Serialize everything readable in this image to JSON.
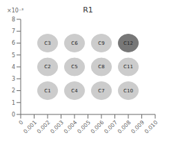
{
  "chart_data": {
    "type": "scatter",
    "title": "R1",
    "x": [
      0.002,
      0.002,
      0.002,
      0.004,
      0.004,
      0.004,
      0.006,
      0.006,
      0.006,
      0.008,
      0.008,
      0.008
    ],
    "values": [
      0.002,
      0.004,
      0.006,
      0.002,
      0.004,
      0.006,
      0.002,
      0.004,
      0.006,
      0.002,
      0.004,
      0.006
    ],
    "labels": [
      "C1",
      "C2",
      "C3",
      "C4",
      "C5",
      "C6",
      "C7",
      "C8",
      "C9",
      "C10",
      "C11",
      "C12"
    ],
    "r": [
      0.00075,
      0.00075,
      0.00075,
      0.00075,
      0.00075,
      0.00075,
      0.00075,
      0.00075,
      0.00075,
      0.00075,
      0.00075,
      0.00075
    ],
    "colors": [
      "#cccccc",
      "#cccccc",
      "#cccccc",
      "#cccccc",
      "#cccccc",
      "#cccccc",
      "#cccccc",
      "#cccccc",
      "#cccccc",
      "#cccccc",
      "#cccccc",
      "#777777"
    ],
    "xlim": [
      0,
      0.01
    ],
    "ylim": [
      0,
      0.008
    ],
    "xticks": [
      0,
      0.001,
      0.002,
      0.003,
      0.004,
      0.005,
      0.006,
      0.007,
      0.008,
      0.009,
      {
        "value": 0.01,
        "label": "0.010"
      }
    ],
    "yticks": [
      0,
      {
        "value": 0.001,
        "label": "1"
      },
      {
        "value": 0.002,
        "label": "2"
      },
      {
        "value": 0.003,
        "label": "3"
      },
      {
        "value": 0.004,
        "label": "4"
      },
      {
        "value": 0.005,
        "label": "5"
      },
      {
        "value": 0.006,
        "label": "6"
      },
      {
        "value": 0.007,
        "label": "7"
      },
      {
        "value": 0.008,
        "label": "8"
      }
    ],
    "annotations": [
      "×10⁻³"
    ],
    "grid": false
  }
}
